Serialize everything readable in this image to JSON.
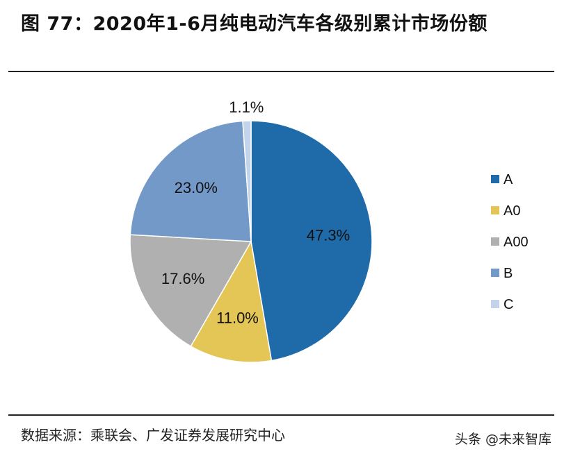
{
  "title": "图 77：2020年1-6月纯电动汽车各级别累计市场份额",
  "source": "数据来源：乘联会、广发证券发展研究中心",
  "watermark": "头条 @未来智库",
  "chart_data": {
    "type": "pie",
    "title": "图 77：2020年1-6月纯电动汽车各级别累计市场份额",
    "categories": [
      "A",
      "A0",
      "A00",
      "B",
      "C"
    ],
    "values": [
      47.3,
      11.0,
      17.6,
      23.0,
      1.1
    ],
    "labels": [
      "47.3%",
      "11.0%",
      "17.6%",
      "23.0%",
      "1.1%"
    ],
    "colors": [
      "#1f6aa8",
      "#e4c657",
      "#b0b0b0",
      "#7399c9",
      "#c3d4ea"
    ],
    "start": "12 o'clock, clockwise",
    "legend_position": "right"
  }
}
